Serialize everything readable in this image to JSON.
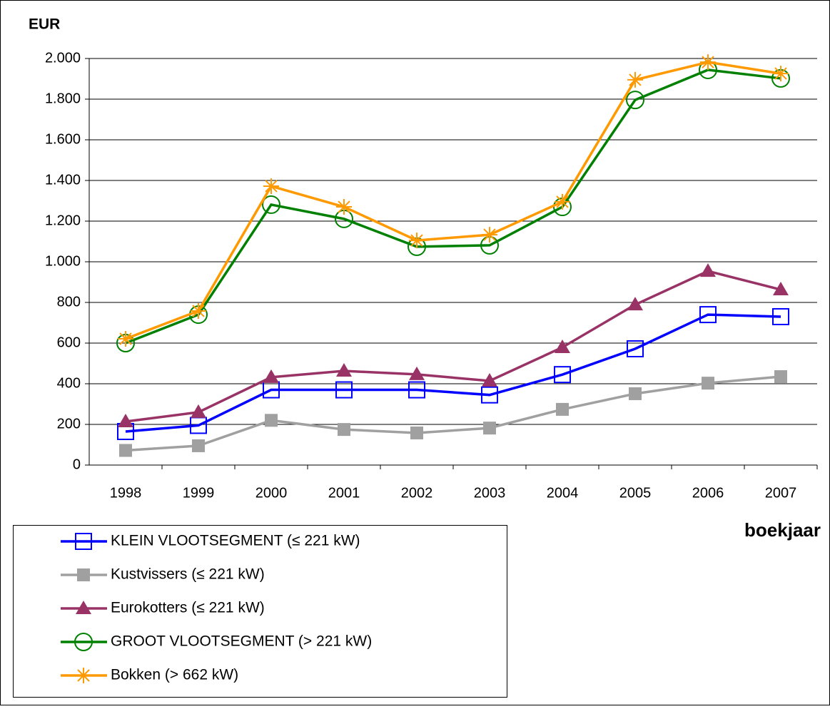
{
  "chart_data": {
    "type": "line",
    "y_label": "EUR",
    "x_label": "boekjaar",
    "categories": [
      "1998",
      "1999",
      "2000",
      "2001",
      "2002",
      "2003",
      "2004",
      "2005",
      "2006",
      "2007"
    ],
    "ylim": [
      0,
      2000
    ],
    "yticks": [
      0,
      200,
      400,
      600,
      800,
      {
        "value": 1000,
        "label": "1.000"
      },
      {
        "value": 1200,
        "label": "1.200"
      },
      {
        "value": 1400,
        "label": "1.400"
      },
      {
        "value": 1600,
        "label": "1.600"
      },
      {
        "value": 1800,
        "label": "1.800"
      },
      {
        "value": 2000,
        "label": "2.000"
      }
    ],
    "grid": true,
    "legend": "bottom-left",
    "series": [
      {
        "name": "KLEIN VLOOTSEGMENT (≤ 221 kW)",
        "color": "#0000ff",
        "marker": "square-open",
        "values": [
          165,
          195,
          370,
          370,
          370,
          345,
          445,
          572,
          740,
          730
        ]
      },
      {
        "name": "Kustvissers (≤ 221 kW)",
        "color": "#a0a0a0",
        "marker": "square",
        "values": [
          72,
          95,
          220,
          175,
          158,
          182,
          274,
          351,
          403,
          435
        ]
      },
      {
        "name": "Eurokotters (≤ 221 kW)",
        "color": "#993366",
        "marker": "triangle",
        "values": [
          214,
          260,
          432,
          463,
          446,
          414,
          579,
          789,
          954,
          863
        ]
      },
      {
        "name": "GROOT VLOOTSEGMENT (> 221 kW)",
        "color": "#008000",
        "marker": "circle-open",
        "values": [
          600,
          740,
          1281,
          1211,
          1074,
          1081,
          1270,
          1796,
          1944,
          1902
        ]
      },
      {
        "name": "Bokken (> 662 kW)",
        "color": "#ff9900",
        "marker": "asterisk",
        "values": [
          621,
          758,
          1372,
          1270,
          1105,
          1133,
          1295,
          1895,
          1982,
          1926
        ]
      }
    ]
  }
}
